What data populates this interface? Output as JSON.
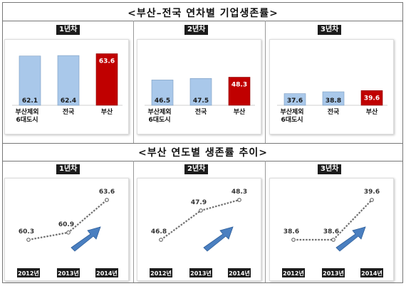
{
  "top_title": "<부산–전국 연차별 기업생존률>",
  "bottom_title": "<부산 연도별 생존률 추이>",
  "colors": {
    "other": "#a9c8ea",
    "busan": "#c00000",
    "line": "#707070",
    "arrow": "#4a7fc0"
  },
  "chart_data": [
    {
      "type": "bar",
      "badge": "1년차",
      "categories": [
        "부산제외\n6대도시",
        "전국",
        "부산"
      ],
      "values": [
        62.1,
        62.4,
        63.6
      ]
    },
    {
      "type": "bar",
      "badge": "2년차",
      "categories": [
        "부산제외\n6대도시",
        "전국",
        "부산"
      ],
      "values": [
        46.5,
        47.5,
        48.3
      ]
    },
    {
      "type": "bar",
      "badge": "3년차",
      "categories": [
        "부산제외\n6대도시",
        "전국",
        "부산"
      ],
      "values": [
        37.6,
        38.8,
        39.6
      ]
    },
    {
      "type": "line",
      "badge": "1년차",
      "x": [
        "2012년",
        "2013년",
        "2014년"
      ],
      "values": [
        60.3,
        60.9,
        63.6
      ]
    },
    {
      "type": "line",
      "badge": "2년차",
      "x": [
        "2012년",
        "2013년",
        "2014년"
      ],
      "values": [
        46.8,
        47.9,
        48.3
      ]
    },
    {
      "type": "line",
      "badge": "3년차",
      "x": [
        "2012년",
        "2013년",
        "2014년"
      ],
      "values": [
        38.6,
        38.6,
        39.6
      ]
    }
  ]
}
